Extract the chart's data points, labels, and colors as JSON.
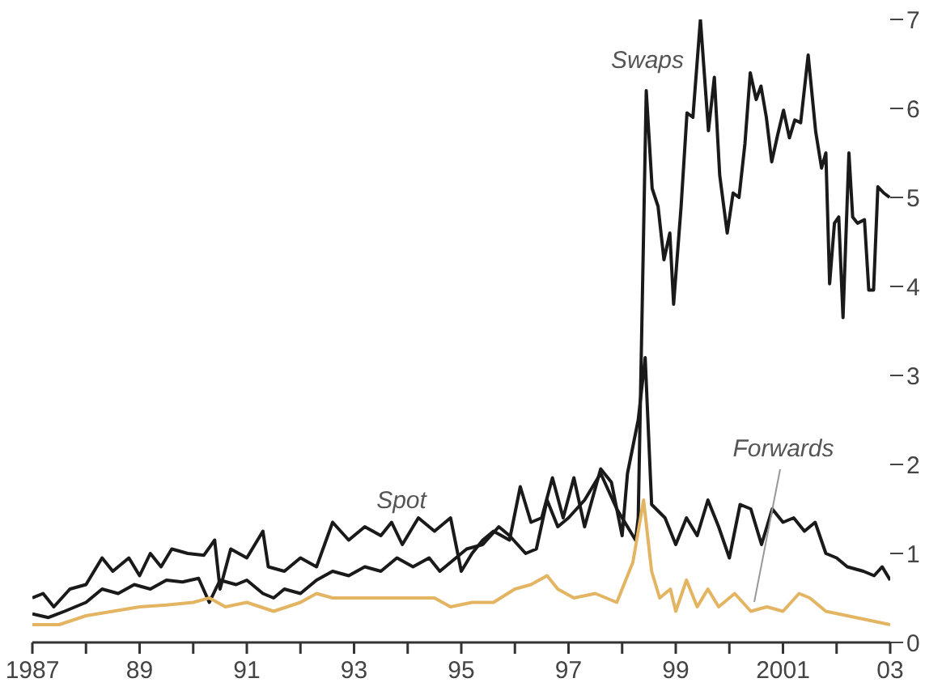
{
  "chart_data": {
    "type": "line",
    "xlim": [
      1987,
      2003
    ],
    "ylim": [
      0,
      7
    ],
    "yticks": [
      0,
      1,
      2,
      3,
      4,
      5,
      6,
      7
    ],
    "xticks": [
      1987,
      {
        "value": 1988,
        "label": null
      },
      {
        "value": 1989,
        "label": "89"
      },
      {
        "value": 1990,
        "label": null
      },
      {
        "value": 1991,
        "label": "91"
      },
      {
        "value": 1992,
        "label": null
      },
      {
        "value": 1993,
        "label": "93"
      },
      {
        "value": 1994,
        "label": null
      },
      {
        "value": 1995,
        "label": "95"
      },
      {
        "value": 1996,
        "label": null
      },
      {
        "value": 1997,
        "label": "97"
      },
      {
        "value": 1998,
        "label": null
      },
      {
        "value": 1999,
        "label": "99"
      },
      {
        "value": 2000,
        "label": null
      },
      2001,
      {
        "value": 2002,
        "label": null
      },
      {
        "value": 2003,
        "label": "03"
      }
    ],
    "marker": "none",
    "line_style": "solid",
    "series": [
      {
        "name": "Swaps",
        "color": "#1a1a1a",
        "x": [
          1987.0,
          1987.3,
          1987.6,
          1988.0,
          1988.3,
          1988.6,
          1988.9,
          1989.2,
          1989.5,
          1989.8,
          1990.1,
          1990.3,
          1990.5,
          1990.8,
          1991.0,
          1991.3,
          1991.5,
          1991.7,
          1992.0,
          1992.3,
          1992.6,
          1992.9,
          1993.2,
          1993.5,
          1993.8,
          1994.1,
          1994.4,
          1994.6,
          1994.8,
          1995.1,
          1995.4,
          1995.7,
          1995.9,
          1996.2,
          1996.4,
          1996.6,
          1996.8,
          1997.0,
          1997.3,
          1997.6,
          1997.9,
          1998.1,
          1998.25,
          1998.3,
          1998.45,
          1998.56,
          1998.67,
          1998.78,
          1998.89,
          1998.96,
          1999.1,
          1999.21,
          1999.32,
          1999.46,
          1999.61,
          1999.72,
          1999.82,
          1999.96,
          2000.07,
          2000.18,
          2000.29,
          2000.39,
          2000.5,
          2000.59,
          2000.69,
          2000.79,
          2000.9,
          2001.01,
          2001.12,
          2001.22,
          2001.33,
          2001.47,
          2001.61,
          2001.72,
          2001.8,
          2001.87,
          2001.96,
          2002.04,
          2002.12,
          2002.23,
          2002.3,
          2002.39,
          2002.52,
          2002.6,
          2002.69,
          2002.77,
          2002.88,
          2002.99
        ],
        "values": [
          0.32,
          0.28,
          0.35,
          0.45,
          0.6,
          0.55,
          0.65,
          0.6,
          0.7,
          0.68,
          0.72,
          0.45,
          0.7,
          0.65,
          0.7,
          0.55,
          0.5,
          0.6,
          0.55,
          0.7,
          0.8,
          0.75,
          0.85,
          0.8,
          0.95,
          0.85,
          0.95,
          0.8,
          0.9,
          1.05,
          1.1,
          1.3,
          1.2,
          1.0,
          1.05,
          1.6,
          1.3,
          1.4,
          1.6,
          1.9,
          1.5,
          1.3,
          1.15,
          1.4,
          6.2,
          5.1,
          4.9,
          4.3,
          4.6,
          3.8,
          4.9,
          5.95,
          5.9,
          7.0,
          5.75,
          6.35,
          5.25,
          4.6,
          5.05,
          5.0,
          5.6,
          6.4,
          6.1,
          6.25,
          5.9,
          5.4,
          5.7,
          5.98,
          5.67,
          5.87,
          5.84,
          6.6,
          5.74,
          5.33,
          5.5,
          4.03,
          4.71,
          4.78,
          3.65,
          5.5,
          4.78,
          4.71,
          4.75,
          3.96,
          3.96,
          5.12,
          5.05,
          5.0
        ]
      },
      {
        "name": "Spot",
        "color": "#1a1a1a",
        "x": [
          1987.0,
          1987.2,
          1987.4,
          1987.7,
          1988.0,
          1988.3,
          1988.5,
          1988.8,
          1989.0,
          1989.2,
          1989.4,
          1989.6,
          1989.9,
          1990.2,
          1990.4,
          1990.5,
          1990.7,
          1991.0,
          1991.3,
          1991.4,
          1991.7,
          1992.0,
          1992.3,
          1992.6,
          1992.9,
          1993.2,
          1993.5,
          1993.7,
          1993.9,
          1994.2,
          1994.5,
          1994.8,
          1995.0,
          1995.2,
          1995.4,
          1995.6,
          1995.9,
          1996.1,
          1996.3,
          1996.5,
          1996.7,
          1996.9,
          1997.1,
          1997.3,
          1997.6,
          1997.8,
          1998.0,
          1998.1,
          1998.3,
          1998.43,
          1998.55,
          1998.8,
          1999.0,
          1999.2,
          1999.4,
          1999.6,
          1999.8,
          2000.0,
          2000.2,
          2000.4,
          2000.6,
          2000.8,
          2001.0,
          2001.2,
          2001.4,
          2001.6,
          2001.8,
          2002.0,
          2002.2,
          2002.5,
          2002.7,
          2002.85,
          2003.0
        ],
        "values": [
          0.5,
          0.55,
          0.4,
          0.6,
          0.65,
          0.95,
          0.8,
          0.95,
          0.75,
          1.0,
          0.85,
          1.05,
          1.0,
          0.98,
          1.15,
          0.6,
          1.05,
          0.95,
          1.25,
          0.85,
          0.8,
          0.95,
          0.85,
          1.35,
          1.15,
          1.3,
          1.2,
          1.35,
          1.1,
          1.4,
          1.25,
          1.4,
          0.8,
          1.0,
          1.15,
          1.25,
          1.15,
          1.75,
          1.35,
          1.4,
          1.85,
          1.4,
          1.85,
          1.3,
          1.95,
          1.8,
          1.2,
          1.9,
          2.5,
          3.2,
          1.55,
          1.4,
          1.1,
          1.4,
          1.2,
          1.6,
          1.3,
          0.95,
          1.55,
          1.5,
          1.1,
          1.5,
          1.35,
          1.4,
          1.25,
          1.35,
          1.0,
          0.95,
          0.85,
          0.8,
          0.75,
          0.85,
          0.7
        ]
      },
      {
        "name": "Forwards",
        "color": "#e3b462",
        "x": [
          1987.0,
          1987.5,
          1988.0,
          1988.5,
          1989.0,
          1989.5,
          1990.0,
          1990.3,
          1990.6,
          1991.0,
          1991.5,
          1992.0,
          1992.3,
          1992.6,
          1993.0,
          1993.5,
          1994.0,
          1994.5,
          1994.8,
          1995.2,
          1995.6,
          1996.0,
          1996.3,
          1996.6,
          1996.8,
          1997.1,
          1997.5,
          1997.9,
          1998.2,
          1998.4,
          1998.55,
          1998.7,
          1998.9,
          1999.0,
          1999.2,
          1999.4,
          1999.6,
          1999.8,
          2000.1,
          2000.4,
          2000.7,
          2001.0,
          2001.3,
          2001.5,
          2001.8,
          2002.2,
          2002.6,
          2003.0
        ],
        "values": [
          0.2,
          0.2,
          0.3,
          0.35,
          0.4,
          0.42,
          0.45,
          0.5,
          0.4,
          0.45,
          0.35,
          0.45,
          0.55,
          0.5,
          0.5,
          0.5,
          0.5,
          0.5,
          0.4,
          0.45,
          0.45,
          0.6,
          0.65,
          0.75,
          0.6,
          0.5,
          0.55,
          0.45,
          0.9,
          1.6,
          0.8,
          0.5,
          0.6,
          0.35,
          0.7,
          0.4,
          0.6,
          0.4,
          0.55,
          0.35,
          0.4,
          0.35,
          0.55,
          0.5,
          0.35,
          0.3,
          0.25,
          0.2
        ]
      }
    ],
    "legend": false
  }
}
